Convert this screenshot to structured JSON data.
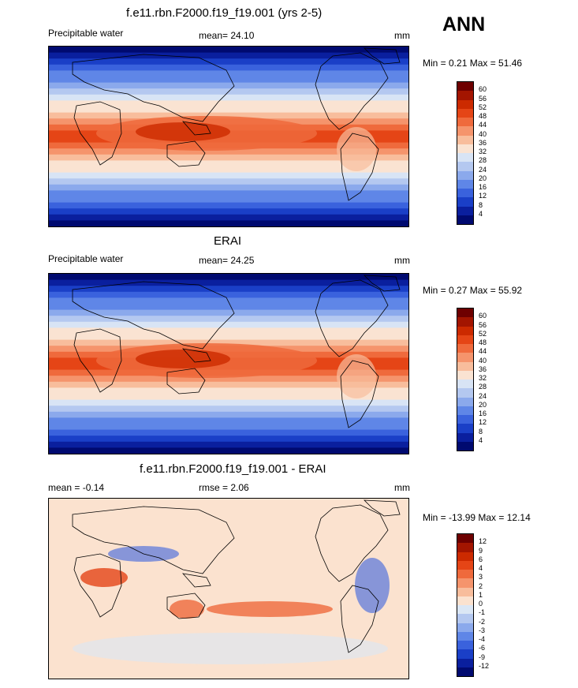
{
  "season": "ANN",
  "units": "mm",
  "panels": [
    {
      "title": "f.e11.rbn.F2000.f19_f19.001 (yrs 2-5)",
      "left_label": "Precipitable water",
      "center_label": "mean=  24.10",
      "minmax": "Min =   0.21 Max =  51.46",
      "type": "abs",
      "colorbar": [
        "60",
        "56",
        "52",
        "48",
        "44",
        "40",
        "36",
        "32",
        "28",
        "24",
        "20",
        "16",
        "12",
        "8",
        "4"
      ]
    },
    {
      "title": "ERAI",
      "left_label": "Precipitable water",
      "center_label": "mean=  24.25",
      "minmax": "Min =   0.27 Max =  55.92",
      "type": "abs",
      "colorbar": [
        "60",
        "56",
        "52",
        "48",
        "44",
        "40",
        "36",
        "32",
        "28",
        "24",
        "20",
        "16",
        "12",
        "8",
        "4"
      ]
    },
    {
      "title": "f.e11.rbn.F2000.f19_f19.001 - ERAI",
      "left_label": "mean =  -0.14",
      "center_label": "rmse =   2.06",
      "minmax": "Min = -13.99 Max =  12.14",
      "type": "diff",
      "colorbar": [
        "12",
        "9",
        "6",
        "4",
        "3",
        "2",
        "1",
        "0",
        "-1",
        "-2",
        "-3",
        "-4",
        "-6",
        "-9",
        "-12"
      ]
    }
  ],
  "colors": {
    "abs_scale": [
      "#6e0000",
      "#a31500",
      "#cc2a00",
      "#e54516",
      "#ef6a3c",
      "#f5946c",
      "#f8bd9c",
      "#fae3d2",
      "#d8e4f5",
      "#b4c8f0",
      "#8ba9ec",
      "#5f86e7",
      "#3a62dd",
      "#1a3fc7",
      "#0a1f9e",
      "#000a70"
    ],
    "diff_scale": [
      "#6e0000",
      "#a31500",
      "#cc2a00",
      "#e54516",
      "#ef6a3c",
      "#f5946c",
      "#f8bd9c",
      "#fbe2cf",
      "#dbe7f5",
      "#b4c8f0",
      "#8ba9ec",
      "#5f86e7",
      "#3a62dd",
      "#1a3fc7",
      "#0a1f9e",
      "#000a70"
    ]
  }
}
